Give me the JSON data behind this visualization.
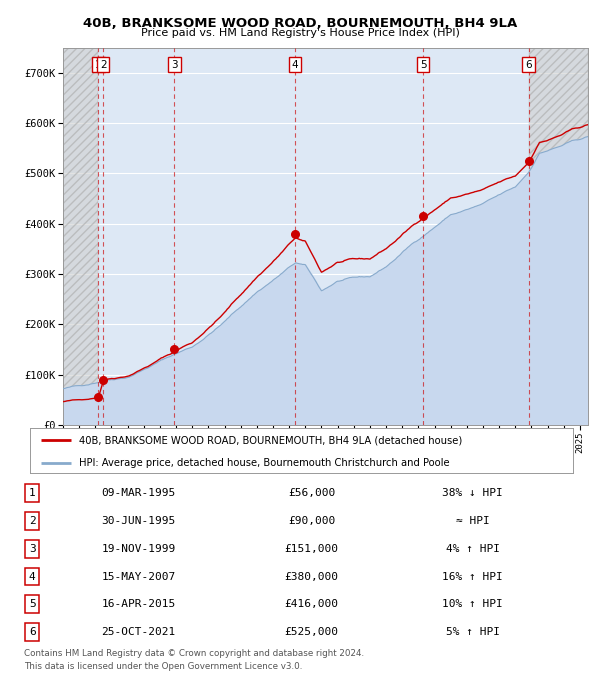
{
  "title": "40B, BRANKSOME WOOD ROAD, BOURNEMOUTH, BH4 9LA",
  "subtitle": "Price paid vs. HM Land Registry's House Price Index (HPI)",
  "legend_line1": "40B, BRANKSOME WOOD ROAD, BOURNEMOUTH, BH4 9LA (detached house)",
  "legend_line2": "HPI: Average price, detached house, Bournemouth Christchurch and Poole",
  "footnote1": "Contains HM Land Registry data © Crown copyright and database right 2024.",
  "footnote2": "This data is licensed under the Open Government Licence v3.0.",
  "ylim": [
    0,
    750000
  ],
  "yticks": [
    0,
    100000,
    200000,
    300000,
    400000,
    500000,
    600000,
    700000
  ],
  "ytick_labels": [
    "£0",
    "£100K",
    "£200K",
    "£300K",
    "£400K",
    "£500K",
    "£600K",
    "£700K"
  ],
  "xlim_start": 1993.0,
  "xlim_end": 2025.5,
  "sale_points": [
    {
      "num": 1,
      "year": 1995.19,
      "price": 56000
    },
    {
      "num": 2,
      "year": 1995.49,
      "price": 90000
    },
    {
      "num": 3,
      "year": 1999.89,
      "price": 151000
    },
    {
      "num": 4,
      "year": 2007.37,
      "price": 380000
    },
    {
      "num": 5,
      "year": 2015.29,
      "price": 416000
    },
    {
      "num": 6,
      "year": 2021.82,
      "price": 525000
    }
  ],
  "table_rows": [
    {
      "num": 1,
      "date": "09-MAR-1995",
      "price": "£56,000",
      "hpi_rel": "38% ↓ HPI"
    },
    {
      "num": 2,
      "date": "30-JUN-1995",
      "price": "£90,000",
      "hpi_rel": "≈ HPI"
    },
    {
      "num": 3,
      "date": "19-NOV-1999",
      "price": "£151,000",
      "hpi_rel": "4% ↑ HPI"
    },
    {
      "num": 4,
      "date": "15-MAY-2007",
      "price": "£380,000",
      "hpi_rel": "16% ↑ HPI"
    },
    {
      "num": 5,
      "date": "16-APR-2015",
      "price": "£416,000",
      "hpi_rel": "10% ↑ HPI"
    },
    {
      "num": 6,
      "date": "25-OCT-2021",
      "price": "£525,000",
      "hpi_rel": "5% ↑ HPI"
    }
  ],
  "red_color": "#cc0000",
  "blue_fill_color": "#c8d8ee",
  "blue_line_color": "#88aacc",
  "hatch_color": "#bbbbbb",
  "bg_color": "#dde8f5",
  "grid_color": "#ffffff"
}
